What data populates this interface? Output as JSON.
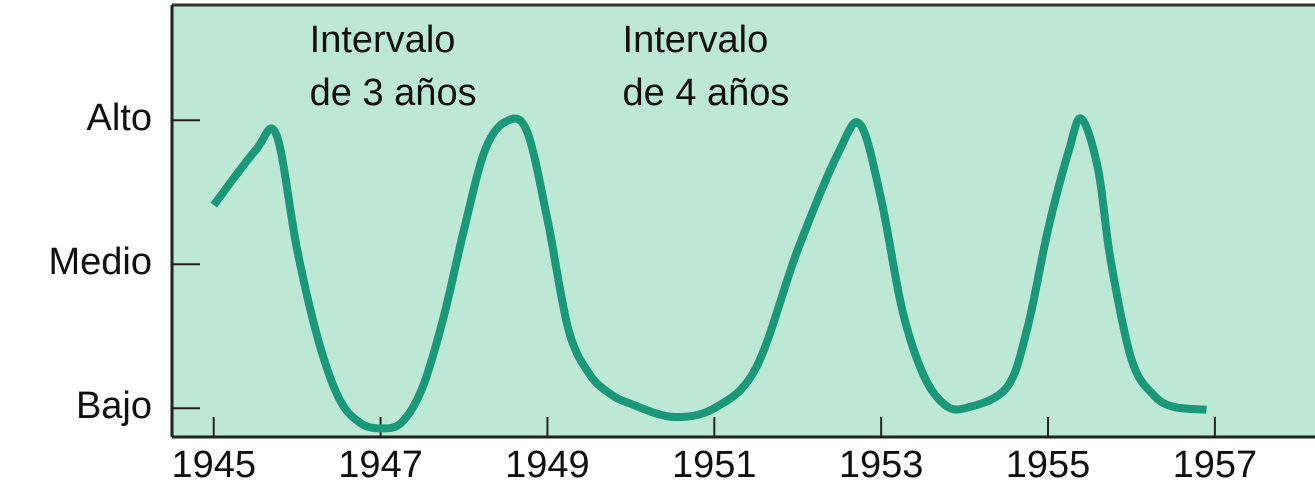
{
  "chart_data": {
    "type": "line",
    "annotations": [
      {
        "lines": [
          "Intervalo",
          "de 3 años"
        ],
        "x": 1946.15
      },
      {
        "lines": [
          "Intervalo",
          "de 4 años"
        ],
        "x": 1949.9
      }
    ],
    "x": [
      1945,
      1945.5,
      1945.75,
      1946,
      1946.25,
      1946.5,
      1946.75,
      1947,
      1947.25,
      1947.5,
      1947.75,
      1948,
      1948.25,
      1948.5,
      1948.75,
      1949,
      1949.25,
      1949.5,
      1949.75,
      1950,
      1950.5,
      1951,
      1951.5,
      1952,
      1952.5,
      1952.75,
      1953,
      1953.25,
      1953.5,
      1953.75,
      1954,
      1954.5,
      1954.75,
      1955,
      1955.25,
      1955.4,
      1955.6,
      1955.75,
      1956,
      1956.25,
      1956.5,
      1956.9
    ],
    "series": [
      {
        "color": "#1b9878",
        "values": [
          1.41,
          1.79,
          1.9,
          1.1,
          0.48,
          0.07,
          -0.1,
          -0.14,
          -0.1,
          0.14,
          0.62,
          1.24,
          1.79,
          1.99,
          1.93,
          1.31,
          0.55,
          0.24,
          0.1,
          0.03,
          -0.06,
          0,
          0.28,
          1.1,
          1.79,
          1.97,
          1.45,
          0.69,
          0.24,
          0.03,
          0,
          0.14,
          0.55,
          1.24,
          1.79,
          2.01,
          1.66,
          1.03,
          0.34,
          0.1,
          0.01,
          -0.01
        ]
      }
    ],
    "xlim": [
      1944.5,
      1958.2
    ],
    "xticks": [
      1945,
      1947,
      1949,
      1951,
      1953,
      1955,
      1957
    ],
    "ylim": [
      -0.2,
      2.8
    ],
    "yticks": [
      {
        "value": 0,
        "label": "Bajo"
      },
      {
        "value": 1,
        "label": "Medio"
      },
      {
        "value": 2,
        "label": "Alto"
      }
    ],
    "background": "#bde8d5"
  }
}
